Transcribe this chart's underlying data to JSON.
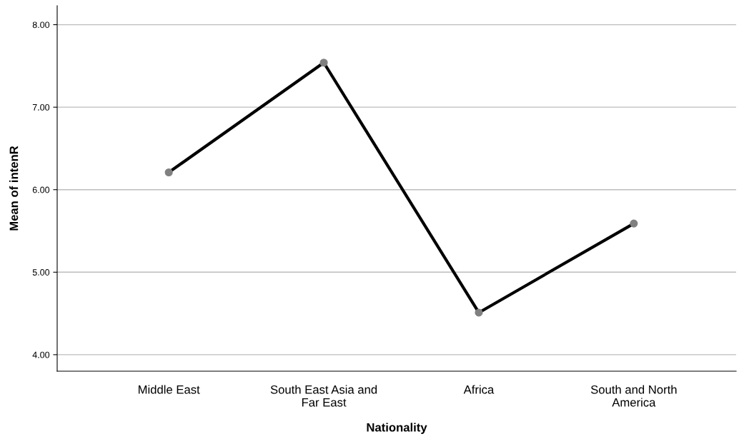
{
  "chart_data": {
    "type": "line",
    "xlabel": "Nationality",
    "ylabel": "Mean of intenR",
    "categories": [
      "Middle East",
      "South East Asia and\nFar East",
      "Africa",
      "South and North\nAmerica"
    ],
    "series": [
      {
        "color": "#000000",
        "values": [
          6.21,
          7.54,
          4.51,
          5.59
        ]
      }
    ],
    "ylim": [
      3.8,
      8.23
    ],
    "yticks": [
      {
        "value": 4,
        "label": "4.00"
      },
      {
        "value": 5,
        "label": "5.00"
      },
      {
        "value": 6,
        "label": "6.00"
      },
      {
        "value": 7,
        "label": "7.00"
      },
      {
        "value": 8,
        "label": "8.00"
      }
    ],
    "grid": "y",
    "marker": "circle",
    "line_style": "solid"
  }
}
